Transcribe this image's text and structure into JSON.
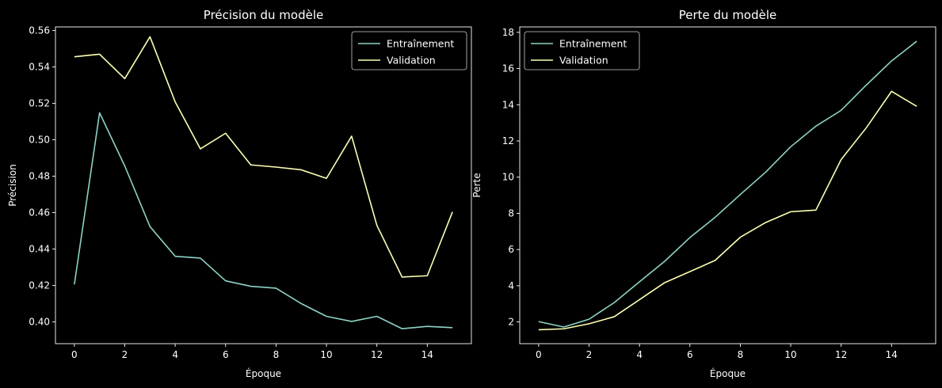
{
  "chart_data": [
    {
      "type": "line",
      "title": "Précision du modèle",
      "xlabel": "Époque",
      "ylabel": "Précision",
      "x": [
        0,
        1,
        2,
        3,
        4,
        5,
        6,
        7,
        8,
        9,
        10,
        11,
        12,
        13,
        14,
        15
      ],
      "xlim": [
        -0.75,
        15.75
      ],
      "ylim": [
        0.388,
        0.562
      ],
      "xticks": [
        0,
        2,
        4,
        6,
        8,
        10,
        12,
        14
      ],
      "yticks": [
        0.4,
        0.42,
        0.44,
        0.46,
        0.48,
        0.5,
        0.52,
        0.54,
        0.56
      ],
      "ytick_labels": [
        "0.40",
        "0.42",
        "0.44",
        "0.46",
        "0.48",
        "0.50",
        "0.52",
        "0.54",
        "0.56"
      ],
      "legend": "top-right",
      "grid": false,
      "series": [
        {
          "name": "Entraînement",
          "color": "#8dd3c7",
          "values": [
            0.4205,
            0.5148,
            0.4856,
            0.4523,
            0.436,
            0.435,
            0.4225,
            0.4195,
            0.4185,
            0.41,
            0.403,
            0.4002,
            0.403,
            0.3962,
            0.3975,
            0.3968
          ]
        },
        {
          "name": "Validation",
          "color": "#feffb3",
          "values": [
            0.5456,
            0.547,
            0.5336,
            0.5566,
            0.5208,
            0.495,
            0.5036,
            0.4862,
            0.485,
            0.4835,
            0.4788,
            0.502,
            0.453,
            0.4246,
            0.4253,
            0.4604
          ]
        }
      ]
    },
    {
      "type": "line",
      "title": "Perte du modèle",
      "xlabel": "Époque",
      "ylabel": "Perte",
      "x": [
        0,
        1,
        2,
        3,
        4,
        5,
        6,
        7,
        8,
        9,
        10,
        11,
        12,
        13,
        14,
        15
      ],
      "xlim": [
        -0.75,
        15.75
      ],
      "ylim": [
        0.8,
        18.3
      ],
      "xticks": [
        0,
        2,
        4,
        6,
        8,
        10,
        12,
        14
      ],
      "yticks": [
        2,
        4,
        6,
        8,
        10,
        12,
        14,
        16,
        18
      ],
      "ytick_labels": [
        "2",
        "4",
        "6",
        "8",
        "10",
        "12",
        "14",
        "16",
        "18"
      ],
      "legend": "top-left",
      "grid": false,
      "series": [
        {
          "name": "Entraînement",
          "color": "#8dd3c7",
          "values": [
            2.02,
            1.72,
            2.15,
            3.07,
            4.22,
            5.35,
            6.66,
            7.78,
            9.04,
            10.27,
            11.68,
            12.82,
            13.69,
            15.09,
            16.42,
            17.51
          ]
        },
        {
          "name": "Validation",
          "color": "#feffb3",
          "values": [
            1.57,
            1.62,
            1.9,
            2.29,
            3.23,
            4.17,
            4.78,
            5.4,
            6.68,
            7.49,
            8.09,
            8.18,
            10.97,
            12.73,
            14.74,
            13.91
          ]
        }
      ]
    }
  ]
}
